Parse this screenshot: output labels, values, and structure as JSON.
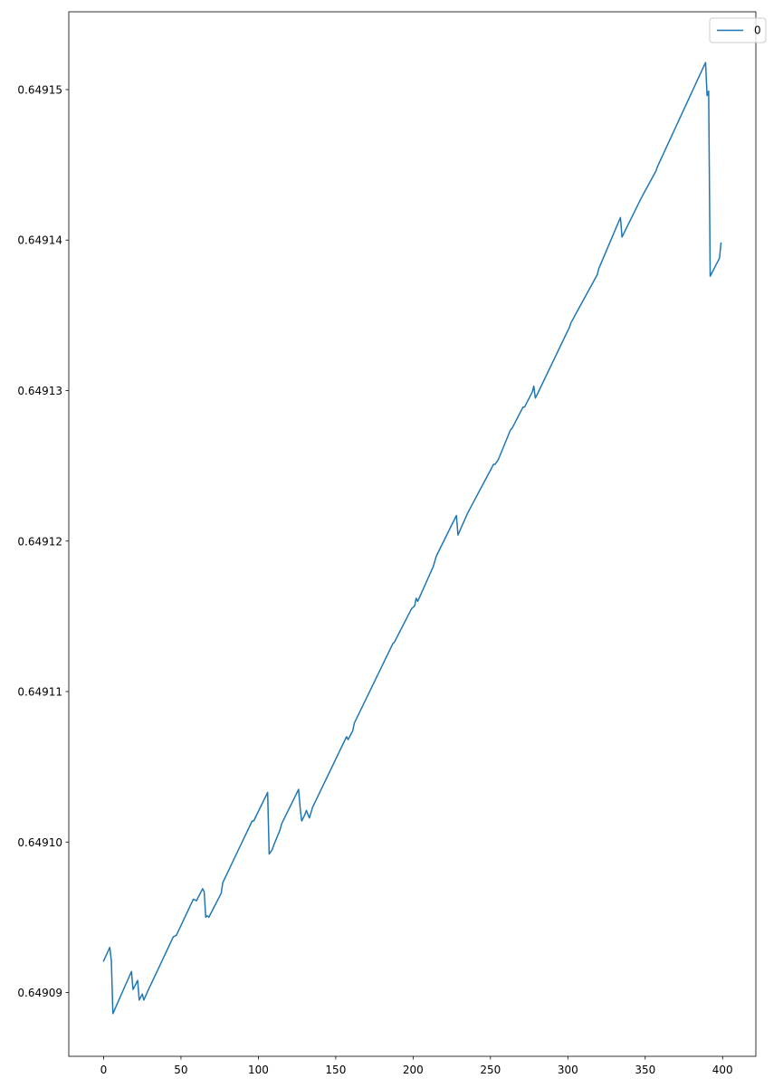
{
  "chart_data": {
    "type": "line",
    "title": "",
    "xlabel": "",
    "ylabel": "",
    "xlim": [
      -22.5,
      421.5
    ],
    "ylim": [
      0.649085761,
      0.649155172
    ],
    "x_ticks": [
      0,
      50,
      100,
      150,
      200,
      250,
      300,
      350,
      400
    ],
    "x_tick_labels": [
      "0",
      "50",
      "100",
      "150",
      "200",
      "250",
      "300",
      "350",
      "400"
    ],
    "y_ticks": [
      0.64909,
      0.6491,
      0.64911,
      0.64912,
      0.64913,
      0.64914,
      0.64915
    ],
    "y_tick_labels": [
      "0.64909",
      "0.64910",
      "0.64911",
      "0.64912",
      "0.64913",
      "0.64914",
      "0.64915"
    ],
    "grid": false,
    "legend": {
      "position": "top-right",
      "entries": [
        "0"
      ]
    },
    "series": [
      {
        "name": "0",
        "color": "#1f77b4",
        "x": [
          0,
          4,
          5,
          6,
          18,
          19,
          22,
          23,
          25,
          26,
          29,
          35,
          45,
          47,
          58,
          60,
          64,
          65,
          66,
          67,
          68,
          76,
          77,
          96,
          97,
          106,
          107,
          109,
          110,
          114,
          115,
          126,
          127,
          128,
          130,
          131,
          133,
          135,
          157,
          158,
          161,
          162,
          187,
          188,
          199,
          201,
          202,
          203,
          213,
          215,
          228,
          229,
          235,
          236,
          237,
          252,
          253,
          255,
          263,
          264,
          271,
          272,
          277,
          278,
          279,
          280,
          301,
          302,
          319,
          320,
          334,
          335,
          347,
          348,
          357,
          358,
          389,
          390,
          391,
          392,
          398,
          399
        ],
        "values": [
          0.6490921,
          0.649093,
          0.6490921,
          0.6490886,
          0.6490914,
          0.6490902,
          0.6490908,
          0.6490895,
          0.6490899,
          0.6490895,
          0.6490902,
          0.6490915,
          0.6490937,
          0.6490938,
          0.6490962,
          0.6490961,
          0.6490969,
          0.6490967,
          0.649095,
          0.6490951,
          0.649095,
          0.6490966,
          0.6490973,
          0.6491014,
          0.6491014,
          0.6491033,
          0.6490992,
          0.6490995,
          0.6490998,
          0.6491008,
          0.6491012,
          0.6491035,
          0.6491023,
          0.6491014,
          0.6491018,
          0.6491021,
          0.6491016,
          0.6491023,
          0.649107,
          0.6491068,
          0.6491074,
          0.6491079,
          0.6491132,
          0.6491133,
          0.6491155,
          0.6491157,
          0.6491162,
          0.649116,
          0.6491183,
          0.649119,
          0.6491217,
          0.6491204,
          0.6491218,
          0.649122,
          0.6491222,
          0.6491251,
          0.6491251,
          0.6491254,
          0.6491274,
          0.6491275,
          0.6491289,
          0.6491289,
          0.6491299,
          0.6491303,
          0.6491295,
          0.6491297,
          0.6491342,
          0.6491345,
          0.6491377,
          0.6491381,
          0.6491415,
          0.6491402,
          0.6491427,
          0.6491429,
          0.6491446,
          0.6491449,
          0.6491518,
          0.6491496,
          0.6491499,
          0.6491376,
          0.6491388,
          0.6491398
        ]
      }
    ]
  }
}
